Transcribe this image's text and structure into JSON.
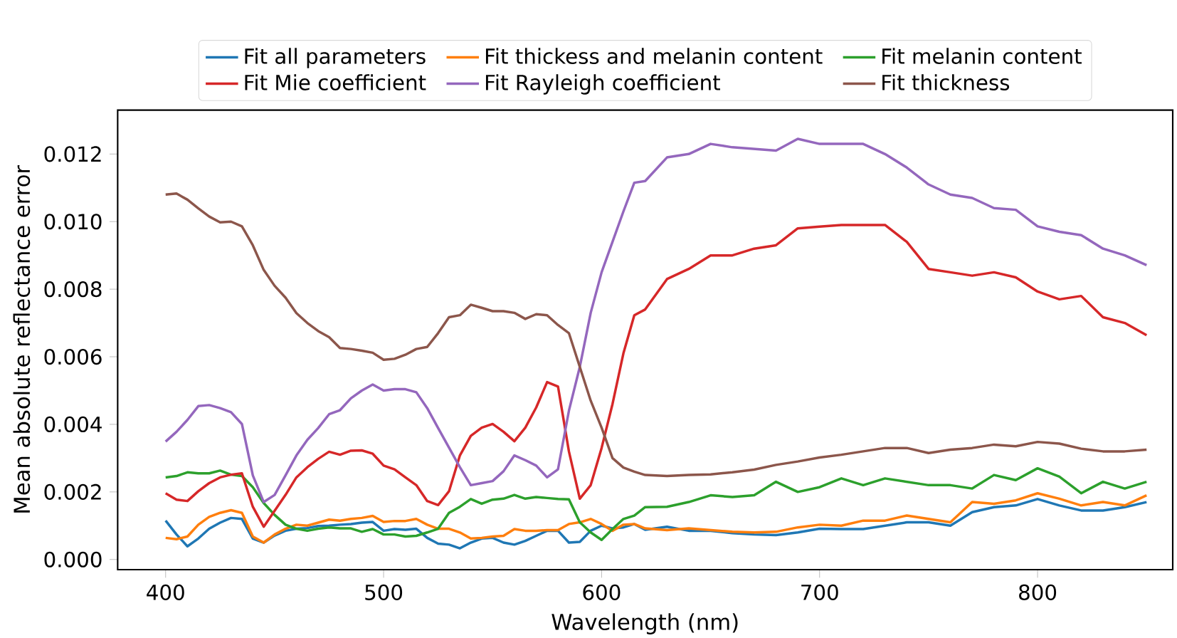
{
  "chart_data": {
    "type": "line",
    "xlabel": "Wavelength (nm)",
    "ylabel": "Mean absolute reflectance error",
    "x": [
      400,
      405,
      410,
      415,
      420,
      425,
      430,
      435,
      440,
      445,
      450,
      455,
      460,
      465,
      470,
      475,
      480,
      485,
      490,
      495,
      500,
      505,
      510,
      515,
      520,
      525,
      530,
      535,
      540,
      545,
      550,
      555,
      560,
      565,
      570,
      575,
      580,
      585,
      590,
      595,
      600,
      605,
      610,
      615,
      620,
      630,
      640,
      650,
      660,
      670,
      680,
      690,
      700,
      710,
      720,
      730,
      740,
      750,
      760,
      770,
      780,
      790,
      800,
      810,
      820,
      830,
      840,
      850
    ],
    "series": [
      {
        "name": "Fit all parameters",
        "color": "#1f77b4",
        "values": [
          0.00115,
          0.00074,
          0.00039,
          0.00062,
          0.00091,
          0.00109,
          0.00123,
          0.0012,
          0.00062,
          0.0005,
          0.00071,
          0.00085,
          0.00091,
          0.00093,
          0.00099,
          0.001,
          0.00103,
          0.00105,
          0.00109,
          0.00111,
          0.00085,
          0.0009,
          0.00088,
          0.00091,
          0.00064,
          0.00047,
          0.00044,
          0.00033,
          0.0005,
          0.00062,
          0.00064,
          0.0005,
          0.00044,
          0.00055,
          0.0007,
          0.00085,
          0.00085,
          0.0005,
          0.00052,
          0.00085,
          0.001,
          0.00092,
          0.00095,
          0.00105,
          0.00088,
          0.00097,
          0.00085,
          0.00085,
          0.00078,
          0.00074,
          0.00072,
          0.0008,
          0.00091,
          0.0009,
          0.0009,
          0.001,
          0.0011,
          0.0011,
          0.001,
          0.0014,
          0.00155,
          0.0016,
          0.00179,
          0.0016,
          0.00145,
          0.00145,
          0.00155,
          0.0017
        ]
      },
      {
        "name": "Fit thickess and melanin content",
        "color": "#ff7f0e",
        "values": [
          0.00064,
          0.0006,
          0.00068,
          0.00103,
          0.00126,
          0.00138,
          0.00146,
          0.00138,
          0.00068,
          0.0005,
          0.00074,
          0.00091,
          0.00103,
          0.001,
          0.00109,
          0.00118,
          0.00115,
          0.0012,
          0.00123,
          0.00129,
          0.00111,
          0.00114,
          0.00114,
          0.0012,
          0.00103,
          0.00091,
          0.00091,
          0.0008,
          0.00062,
          0.00064,
          0.00068,
          0.0007,
          0.0009,
          0.00085,
          0.00085,
          0.00087,
          0.00087,
          0.00105,
          0.0011,
          0.0012,
          0.00105,
          0.00085,
          0.00103,
          0.00105,
          0.00092,
          0.00087,
          0.00092,
          0.00087,
          0.00082,
          0.0008,
          0.00082,
          0.00095,
          0.00103,
          0.001,
          0.00115,
          0.00115,
          0.0013,
          0.0012,
          0.0011,
          0.0017,
          0.00165,
          0.00175,
          0.00196,
          0.0018,
          0.0016,
          0.0017,
          0.0016,
          0.0019
        ]
      },
      {
        "name": "Fit melanin content",
        "color": "#2ca02c",
        "values": [
          0.00243,
          0.00247,
          0.00258,
          0.00255,
          0.00255,
          0.00263,
          0.00251,
          0.00247,
          0.00214,
          0.00167,
          0.00132,
          0.00103,
          0.00091,
          0.00085,
          0.00091,
          0.00095,
          0.00092,
          0.00092,
          0.00082,
          0.0009,
          0.00074,
          0.00074,
          0.00068,
          0.0007,
          0.0008,
          0.00091,
          0.00138,
          0.00156,
          0.00179,
          0.00165,
          0.00177,
          0.0018,
          0.00191,
          0.0018,
          0.00185,
          0.00182,
          0.00179,
          0.00178,
          0.0011,
          0.0008,
          0.00058,
          0.0009,
          0.0012,
          0.0013,
          0.00155,
          0.00156,
          0.0017,
          0.0019,
          0.00185,
          0.0019,
          0.0023,
          0.002,
          0.00214,
          0.0024,
          0.0022,
          0.0024,
          0.0023,
          0.0022,
          0.0022,
          0.0021,
          0.0025,
          0.00235,
          0.0027,
          0.00245,
          0.00196,
          0.0023,
          0.0021,
          0.0023
        ]
      },
      {
        "name": "Fit Mie coefficient",
        "color": "#d62728",
        "values": [
          0.00196,
          0.00177,
          0.00173,
          0.00202,
          0.00226,
          0.00243,
          0.00251,
          0.00255,
          0.00156,
          0.00097,
          0.00144,
          0.00191,
          0.00243,
          0.00273,
          0.00298,
          0.00319,
          0.0031,
          0.00322,
          0.00323,
          0.00313,
          0.00278,
          0.00267,
          0.00243,
          0.0022,
          0.00173,
          0.00161,
          0.00202,
          0.00308,
          0.00366,
          0.0039,
          0.00401,
          0.00378,
          0.0035,
          0.0039,
          0.0045,
          0.00525,
          0.00512,
          0.0032,
          0.0018,
          0.0022,
          0.0033,
          0.0046,
          0.0061,
          0.00723,
          0.0074,
          0.0083,
          0.0086,
          0.009,
          0.009,
          0.0092,
          0.0093,
          0.0098,
          0.00985,
          0.0099,
          0.0099,
          0.0099,
          0.0094,
          0.0086,
          0.0085,
          0.0084,
          0.0085,
          0.00835,
          0.00793,
          0.0077,
          0.0078,
          0.00717,
          0.007,
          0.00664
        ]
      },
      {
        "name": "Fit Rayleigh coefficient",
        "color": "#9467bd",
        "values": [
          0.00349,
          0.00378,
          0.00413,
          0.00454,
          0.00457,
          0.00448,
          0.00436,
          0.00401,
          0.00249,
          0.0017,
          0.00191,
          0.00249,
          0.00308,
          0.00354,
          0.00389,
          0.0043,
          0.00442,
          0.00477,
          0.005,
          0.00518,
          0.005,
          0.00504,
          0.00504,
          0.00495,
          0.00448,
          0.00389,
          0.00331,
          0.00273,
          0.0022,
          0.00226,
          0.00232,
          0.00261,
          0.00308,
          0.00294,
          0.00278,
          0.00243,
          0.00267,
          0.0044,
          0.0057,
          0.0073,
          0.0085,
          0.0094,
          0.0103,
          0.01115,
          0.0112,
          0.0119,
          0.012,
          0.0123,
          0.0122,
          0.01215,
          0.0121,
          0.01245,
          0.0123,
          0.0123,
          0.0123,
          0.012,
          0.0116,
          0.0111,
          0.0108,
          0.0107,
          0.0104,
          0.01035,
          0.00986,
          0.0097,
          0.0096,
          0.0092,
          0.009,
          0.00871
        ]
      },
      {
        "name": "Fit thickness",
        "color": "#8c564b",
        "values": [
          0.0108,
          0.01083,
          0.01065,
          0.01039,
          0.01015,
          0.00998,
          0.01,
          0.00986,
          0.0093,
          0.00857,
          0.0081,
          0.00775,
          0.00729,
          0.007,
          0.00676,
          0.00658,
          0.00626,
          0.00623,
          0.00618,
          0.00612,
          0.00591,
          0.00594,
          0.00606,
          0.00623,
          0.00629,
          0.0067,
          0.00717,
          0.00723,
          0.00754,
          0.00745,
          0.00735,
          0.00735,
          0.0073,
          0.00712,
          0.00726,
          0.00723,
          0.00694,
          0.0067,
          0.0057,
          0.0047,
          0.0039,
          0.003,
          0.00272,
          0.0026,
          0.0025,
          0.00247,
          0.0025,
          0.00252,
          0.00258,
          0.00266,
          0.0028,
          0.0029,
          0.00302,
          0.0031,
          0.0032,
          0.0033,
          0.0033,
          0.00315,
          0.00325,
          0.0033,
          0.0034,
          0.00335,
          0.00348,
          0.00343,
          0.00328,
          0.0032,
          0.0032,
          0.00325
        ]
      }
    ],
    "xlim": [
      378,
      862
    ],
    "ylim": [
      -0.0003,
      0.0133
    ],
    "xticks": [
      400,
      500,
      600,
      700,
      800
    ],
    "yticks": [
      {
        "value": 0,
        "label": "0.000"
      },
      {
        "value": 0.002,
        "label": "0.002"
      },
      {
        "value": 0.004,
        "label": "0.004"
      },
      {
        "value": 0.006,
        "label": "0.006"
      },
      {
        "value": 0.008,
        "label": "0.008"
      },
      {
        "value": 0.01,
        "label": "0.010"
      },
      {
        "value": 0.012,
        "label": "0.012"
      }
    ],
    "legend": "top",
    "line_style": "solid"
  }
}
